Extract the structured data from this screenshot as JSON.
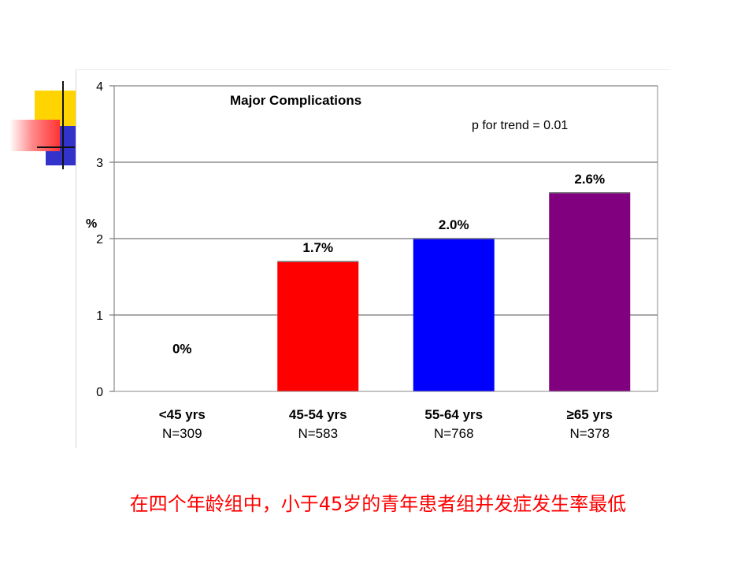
{
  "chart_data": {
    "type": "bar",
    "title": "Major Complications",
    "annotation": "p for trend = 0.01",
    "ylabel": "%",
    "ylim": [
      0,
      4
    ],
    "yticks": [
      "0",
      "1",
      "2",
      "3",
      "4"
    ],
    "grid": true,
    "categories": [
      "<45 yrs",
      "45-54 yrs",
      "55-64 yrs",
      "≥65 yrs"
    ],
    "sublabels": [
      "N=309",
      "N=583",
      "N=768",
      "N=378"
    ],
    "values": [
      0,
      1.7,
      2.0,
      2.6
    ],
    "data_labels": [
      "0%",
      "1.7%",
      "2.0%",
      "2.6%"
    ],
    "colors": [
      "#FF0000",
      "#FF0000",
      "#0000FF",
      "#800080"
    ]
  },
  "caption": "在四个年龄组中，小于45岁的青年患者组并发症发生率最低"
}
